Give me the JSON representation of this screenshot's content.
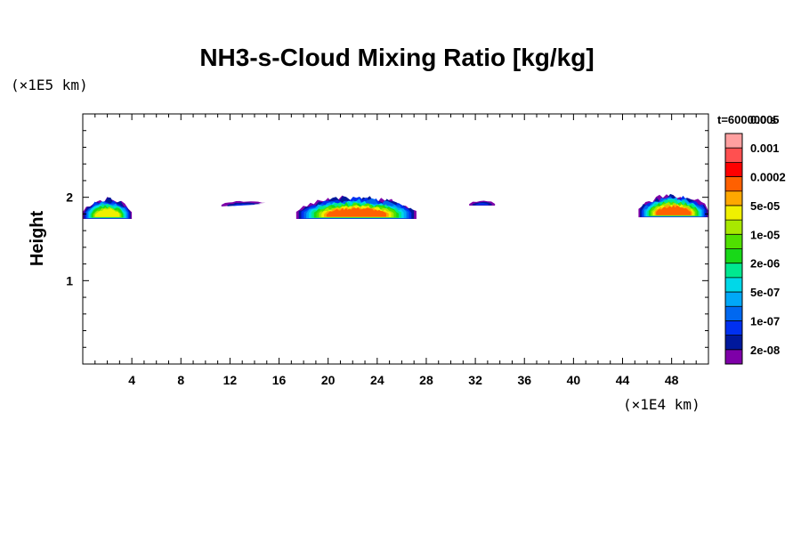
{
  "chart_data": {
    "type": "heatmap",
    "title": "NH3-s-Cloud Mixing Ratio [kg/kg]",
    "xlabel": "",
    "ylabel": "Height",
    "x_unit": "(×1E4 km)",
    "y_unit": "(×1E5 km)",
    "time_label": "t=600000 s",
    "xlim": [
      0,
      51
    ],
    "ylim": [
      0,
      3
    ],
    "x_ticks": [
      4,
      8,
      12,
      16,
      20,
      24,
      28,
      32,
      36,
      40,
      44,
      48
    ],
    "y_ticks": [
      1,
      2
    ],
    "grid": false,
    "colorbar": {
      "position": "right",
      "colors": [
        "#7e00a8",
        "#00189c",
        "#0030f0",
        "#0068f0",
        "#00a8f8",
        "#00d8e8",
        "#00e890",
        "#18d818",
        "#50e000",
        "#a8e800",
        "#f0f000",
        "#ffa800",
        "#ff6000",
        "#ff0000",
        "#ff5050",
        "#ffa0a0"
      ],
      "labels": [
        "2e-08",
        "1e-07",
        "5e-07",
        "2e-06",
        "1e-05",
        "5e-05",
        "0.0002",
        "0.001",
        "0.005"
      ]
    },
    "cloud_regions": [
      {
        "x_start": 0,
        "x_end": 4.0,
        "z_bottom": 1.74,
        "z_top": 1.98,
        "peak_level": 10
      },
      {
        "x_start": 11.3,
        "x_end": 15.2,
        "z_bottom": 1.89,
        "z_top": 1.95,
        "peak_level": 2
      },
      {
        "x_start": 17.4,
        "x_end": 27.2,
        "z_bottom": 1.74,
        "z_top": 2.0,
        "peak_level": 12
      },
      {
        "x_start": 31.5,
        "x_end": 33.6,
        "z_bottom": 1.9,
        "z_top": 1.96,
        "peak_level": 2
      },
      {
        "x_start": 45.3,
        "x_end": 51,
        "z_bottom": 1.76,
        "z_top": 2.02,
        "peak_level": 12
      }
    ]
  }
}
